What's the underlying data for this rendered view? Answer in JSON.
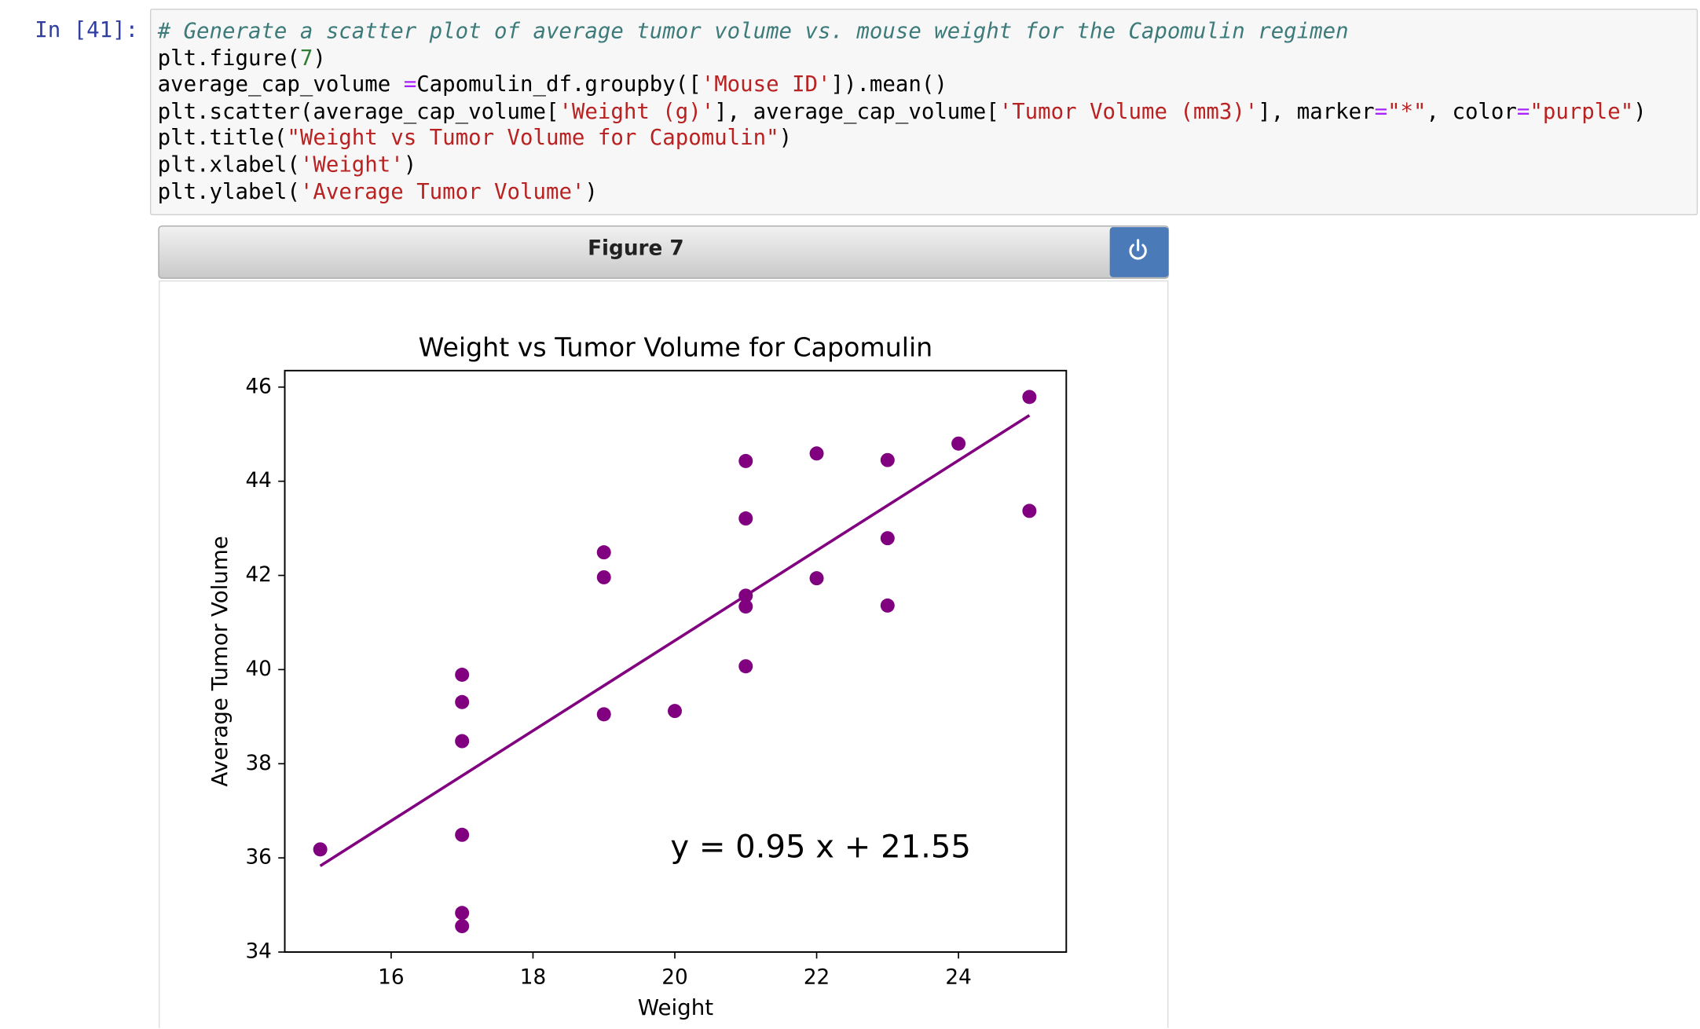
{
  "prompt": "In [41]:",
  "code": {
    "lines": [
      {
        "tokens": [
          {
            "text": "# Generate a scatter plot of average tumor volume vs. mouse weight for the Capomulin regimen",
            "color": "#3d7a7a",
            "italic": true
          }
        ]
      },
      {
        "tokens": [
          {
            "text": "plt.figure(",
            "color": "#000000"
          },
          {
            "text": "7",
            "color": "#2e7d32"
          },
          {
            "text": ")",
            "color": "#000000"
          }
        ]
      },
      {
        "tokens": [
          {
            "text": "average_cap_volume ",
            "color": "#000000"
          },
          {
            "text": "=",
            "color": "#aa22ff"
          },
          {
            "text": "Capomulin_df.groupby([",
            "color": "#000000"
          },
          {
            "text": "'Mouse ID'",
            "color": "#ba2121"
          },
          {
            "text": "]).mean()",
            "color": "#000000"
          }
        ]
      },
      {
        "tokens": [
          {
            "text": "plt.scatter(average_cap_volume[",
            "color": "#000000"
          },
          {
            "text": "'Weight (g)'",
            "color": "#ba2121"
          },
          {
            "text": "], average_cap_volume[",
            "color": "#000000"
          },
          {
            "text": "'Tumor Volume (mm3)'",
            "color": "#ba2121"
          },
          {
            "text": "], marker",
            "color": "#000000"
          },
          {
            "text": "=",
            "color": "#aa22ff"
          },
          {
            "text": "\"*\"",
            "color": "#ba2121"
          },
          {
            "text": ", color",
            "color": "#000000"
          },
          {
            "text": "=",
            "color": "#aa22ff"
          },
          {
            "text": "\"purple\"",
            "color": "#ba2121"
          },
          {
            "text": ")",
            "color": "#000000"
          }
        ]
      },
      {
        "tokens": [
          {
            "text": "plt.title(",
            "color": "#000000"
          },
          {
            "text": "\"Weight vs Tumor Volume for Capomulin\"",
            "color": "#ba2121"
          },
          {
            "text": ")",
            "color": "#000000"
          }
        ]
      },
      {
        "tokens": [
          {
            "text": "plt.xlabel(",
            "color": "#000000"
          },
          {
            "text": "'Weight'",
            "color": "#ba2121"
          },
          {
            "text": ")",
            "color": "#000000"
          }
        ]
      },
      {
        "tokens": [
          {
            "text": "plt.ylabel(",
            "color": "#000000"
          },
          {
            "text": "'Average Tumor Volume'",
            "color": "#ba2121"
          },
          {
            "text": ")",
            "color": "#000000"
          }
        ]
      }
    ]
  },
  "figure": {
    "title": "Figure 7"
  },
  "chart_data": {
    "type": "scatter",
    "title": "Weight vs Tumor Volume for Capomulin",
    "xlabel": "Weight",
    "ylabel": "Average Tumor Volume",
    "annotation": "y = 0.95 x + 21.55",
    "color": "#800080",
    "x": [
      15,
      17,
      17,
      17,
      17,
      17,
      17,
      19,
      19,
      19,
      20,
      21,
      21,
      21,
      21,
      21,
      22,
      22,
      23,
      23,
      23,
      24,
      25,
      25
    ],
    "values": [
      36.18,
      39.89,
      39.31,
      38.48,
      36.49,
      34.83,
      34.55,
      42.49,
      41.96,
      39.05,
      39.12,
      44.43,
      43.21,
      41.57,
      41.34,
      40.07,
      44.59,
      41.94,
      44.45,
      42.79,
      41.36,
      44.8,
      45.79,
      43.37
    ],
    "fit_line": {
      "x": [
        15,
        25
      ],
      "values": [
        35.83,
        45.4
      ]
    },
    "xlim": [
      14.5,
      25.52
    ],
    "ylim": [
      34,
      46.35
    ],
    "xticks": [
      16,
      18,
      20,
      22,
      24
    ],
    "yticks": [
      34,
      36,
      38,
      40,
      42,
      44,
      46
    ]
  }
}
